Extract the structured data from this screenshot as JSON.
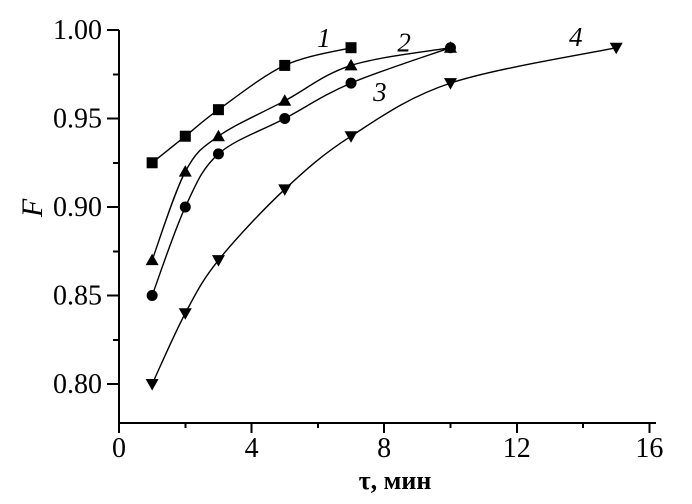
{
  "figure": {
    "background": "#ffffff",
    "ink_color": "#000000"
  },
  "chart_data": {
    "type": "line",
    "title": "",
    "xlabel": "τ, мин",
    "ylabel": "F",
    "xlim": [
      0,
      16.2
    ],
    "ylim": [
      0.778,
      1.0
    ],
    "grid": false,
    "legend_position": "none",
    "axes_style": "left-bottom only, ticks outside",
    "x_ticks": {
      "values": [
        0,
        4,
        8,
        12,
        16
      ],
      "labels": [
        "0",
        "4",
        "8",
        "12",
        "16"
      ],
      "minor": [
        2,
        6,
        10,
        14
      ]
    },
    "y_ticks": {
      "values": [
        1.0,
        0.95,
        0.9,
        0.85,
        0.8
      ],
      "labels": [
        "1.00",
        "0.95",
        "0.90",
        "0.85",
        "0.80"
      ],
      "minor": [
        0.975,
        0.925,
        0.875,
        0.825
      ]
    },
    "series": [
      {
        "name": "1",
        "marker": "square",
        "color": "#000000",
        "line": "smooth",
        "x": [
          1,
          2,
          3,
          5,
          7
        ],
        "y": [
          0.925,
          0.94,
          0.955,
          0.98,
          0.99
        ]
      },
      {
        "name": "2",
        "marker": "triangle-up",
        "color": "#000000",
        "line": "smooth",
        "x": [
          1,
          2,
          3,
          5,
          7,
          10
        ],
        "y": [
          0.87,
          0.92,
          0.94,
          0.96,
          0.98,
          0.99
        ]
      },
      {
        "name": "3",
        "marker": "circle",
        "color": "#000000",
        "line": "smooth",
        "x": [
          1,
          2,
          3,
          5,
          7,
          10
        ],
        "y": [
          0.85,
          0.9,
          0.93,
          0.95,
          0.97,
          0.99
        ]
      },
      {
        "name": "4",
        "marker": "triangle-down",
        "color": "#000000",
        "line": "smooth",
        "x": [
          1,
          2,
          3,
          5,
          7,
          10,
          15
        ],
        "y": [
          0.8,
          0.84,
          0.87,
          0.91,
          0.94,
          0.97,
          0.99
        ]
      }
    ],
    "curve_labels": [
      {
        "text": "1",
        "x": 6.18,
        "y": 0.9955
      },
      {
        "text": "2",
        "x": 8.6,
        "y": 0.993
      },
      {
        "text": "3",
        "x": 7.87,
        "y": 0.965
      },
      {
        "text": "4",
        "x": 13.78,
        "y": 0.996
      }
    ]
  }
}
